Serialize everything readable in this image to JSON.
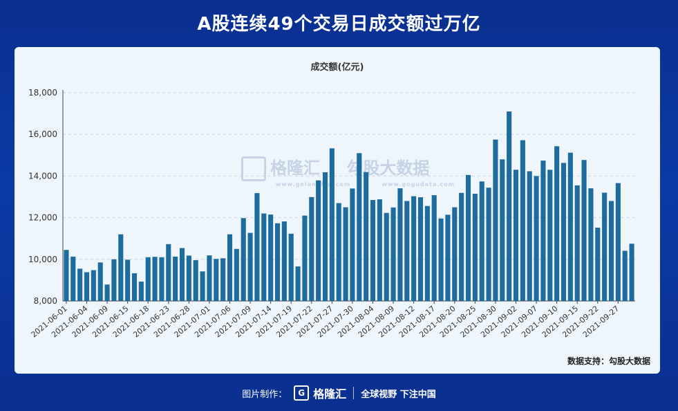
{
  "headline": "A股连续49个交易日成交额过万亿",
  "source_label": "数据支持：勾股大数据",
  "watermark": {
    "brand": "格隆汇",
    "brand_url": "www.gelonghui.com",
    "brand2": "勾股大数据",
    "brand2_url": "www.gogudata.com",
    "logo_icon": "g-logo-icon"
  },
  "footer": {
    "made_by": "图片制作：",
    "brand": "格隆汇",
    "logo_icon": "g-logo-icon",
    "slogan": "全球视野 下注中国"
  },
  "colors": {
    "bar": "#1e6b9e",
    "grid": "#c8d3de",
    "background": "#0b3aa6",
    "card": "#eef5fb"
  },
  "chart_data": {
    "type": "bar",
    "title": "成交额(亿元)",
    "xlabel": "",
    "ylabel": "",
    "ylim": [
      8000,
      18000
    ],
    "yticks": [
      "8,000",
      "10,000",
      "12,000",
      "14,000",
      "16,000",
      "18,000"
    ],
    "grid": true,
    "x_tick_labels": [
      "2021-06-01",
      "2021-06-04",
      "2021-06-09",
      "2021-06-15",
      "2021-06-18",
      "2021-06-23",
      "2021-06-28",
      "2021-07-01",
      "2021-07-06",
      "2021-07-09",
      "2021-07-14",
      "2021-07-19",
      "2021-07-22",
      "2021-07-27",
      "2021-07-30",
      "2021-08-04",
      "2021-08-09",
      "2021-08-12",
      "2021-08-17",
      "2021-08-20",
      "2021-08-25",
      "2021-08-30",
      "2021-09-02",
      "2021-09-07",
      "2021-09-10",
      "2021-09-15",
      "2021-09-22",
      "2021-09-27"
    ],
    "values": [
      10450,
      10130,
      9550,
      9380,
      9480,
      9850,
      8790,
      10000,
      11200,
      9980,
      9330,
      8930,
      10100,
      10120,
      10100,
      10730,
      10130,
      10540,
      10180,
      9960,
      9420,
      10190,
      10020,
      10050,
      11200,
      10500,
      11980,
      11270,
      13180,
      12200,
      12150,
      11730,
      11820,
      11230,
      9660,
      12100,
      12990,
      13790,
      14180,
      15330,
      12700,
      12500,
      13400,
      15100,
      14190,
      12850,
      12880,
      12230,
      12490,
      13410,
      12800,
      13030,
      12980,
      12560,
      13080,
      11960,
      12140,
      12500,
      13190,
      14050,
      13150,
      13740,
      13440,
      15750,
      14800,
      17100,
      14300,
      15720,
      14230,
      14000,
      14740,
      14300,
      15430,
      14630,
      15120,
      13550,
      14770,
      13410,
      11520,
      13200,
      12800,
      13660,
      10410,
      10750
    ]
  }
}
